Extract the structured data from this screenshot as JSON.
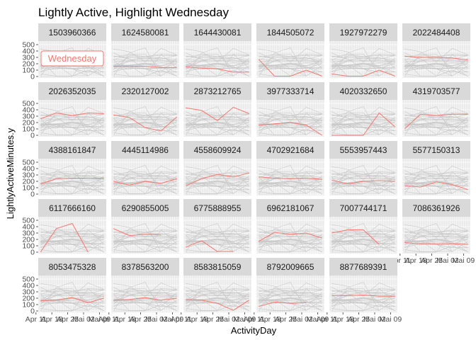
{
  "chart_data": {
    "type": "line",
    "title": "Lightly Active, Highlight Wednesday",
    "xlabel": "ActivityDay",
    "ylabel": "LightlyActiveMinutes.y",
    "ylim": [
      0,
      500
    ],
    "y_ticks": [
      0,
      100,
      200,
      300,
      400,
      500
    ],
    "x_tick_labels": [
      "Apr 11",
      "Apr 18",
      "Apr 25",
      "Mai 02",
      "Mai 09"
    ],
    "x_values": [
      "2016-04-13",
      "2016-04-20",
      "2016-04-27",
      "2016-05-04",
      "2016-05-11"
    ],
    "highlight_label": "Wednesday",
    "background_series_color": "#c8c8c8",
    "highlight_color": "#f8766d",
    "panel_background": "#ebebeb",
    "strip_background": "#d9d9d9",
    "grid": true,
    "facets": [
      {
        "id": "1503960366",
        "values": [
          null,
          null,
          null,
          null,
          null
        ]
      },
      {
        "id": "1624580081",
        "values": [
          160,
          160,
          160,
          140,
          140
        ]
      },
      {
        "id": "1644430081",
        "values": [
          150,
          130,
          120,
          70,
          70
        ]
      },
      {
        "id": "1844505072",
        "values": [
          270,
          5,
          5,
          100,
          5
        ]
      },
      {
        "id": "1927972279",
        "values": [
          40,
          5,
          5,
          100,
          5
        ]
      },
      {
        "id": "2022484408",
        "values": [
          320,
          300,
          300,
          290,
          260
        ]
      },
      {
        "id": "2026352035",
        "values": [
          260,
          350,
          310,
          350,
          340
        ]
      },
      {
        "id": "2320127002",
        "values": [
          320,
          280,
          120,
          70,
          290
        ]
      },
      {
        "id": "2873212765",
        "values": [
          430,
          390,
          230,
          440,
          340
        ]
      },
      {
        "id": "3977333714",
        "values": [
          160,
          180,
          200,
          160,
          0
        ]
      },
      {
        "id": "4020332650",
        "values": [
          0,
          0,
          0,
          350,
          130
        ]
      },
      {
        "id": "4319703577",
        "values": [
          100,
          330,
          310,
          330,
          330
        ]
      },
      {
        "id": "4388161847",
        "values": [
          160,
          240,
          250,
          250,
          250
        ]
      },
      {
        "id": "4445114986",
        "values": [
          200,
          140,
          200,
          170,
          240
        ]
      },
      {
        "id": "4558609924",
        "values": [
          130,
          240,
          310,
          270,
          330
        ]
      },
      {
        "id": "4702921684",
        "values": [
          270,
          250,
          240,
          250,
          230
        ]
      },
      {
        "id": "5553957443",
        "values": [
          220,
          160,
          200,
          210,
          200
        ]
      },
      {
        "id": "5577150313",
        "values": [
          130,
          110,
          190,
          150,
          70
        ]
      },
      {
        "id": "6117666160",
        "values": [
          0,
          370,
          450,
          0,
          null
        ]
      },
      {
        "id": "6290855005",
        "values": [
          370,
          260,
          280,
          270,
          null
        ]
      },
      {
        "id": "6775888955",
        "values": [
          80,
          180,
          10,
          10,
          null
        ]
      },
      {
        "id": "6962181067",
        "values": [
          170,
          310,
          280,
          300,
          220
        ]
      },
      {
        "id": "7007744171",
        "values": [
          300,
          350,
          350,
          120,
          null
        ]
      },
      {
        "id": "7086361926",
        "values": [
          150,
          130,
          130,
          130,
          120
        ]
      },
      {
        "id": "8053475328",
        "values": [
          160,
          170,
          210,
          130,
          200
        ]
      },
      {
        "id": "8378563200",
        "values": [
          170,
          180,
          210,
          170,
          200
        ]
      },
      {
        "id": "8583815059",
        "values": [
          180,
          170,
          120,
          10,
          170
        ]
      },
      {
        "id": "8792009665",
        "values": [
          70,
          140,
          120,
          130,
          null
        ]
      },
      {
        "id": "8877689391",
        "values": [
          240,
          240,
          250,
          230,
          230
        ]
      }
    ]
  }
}
